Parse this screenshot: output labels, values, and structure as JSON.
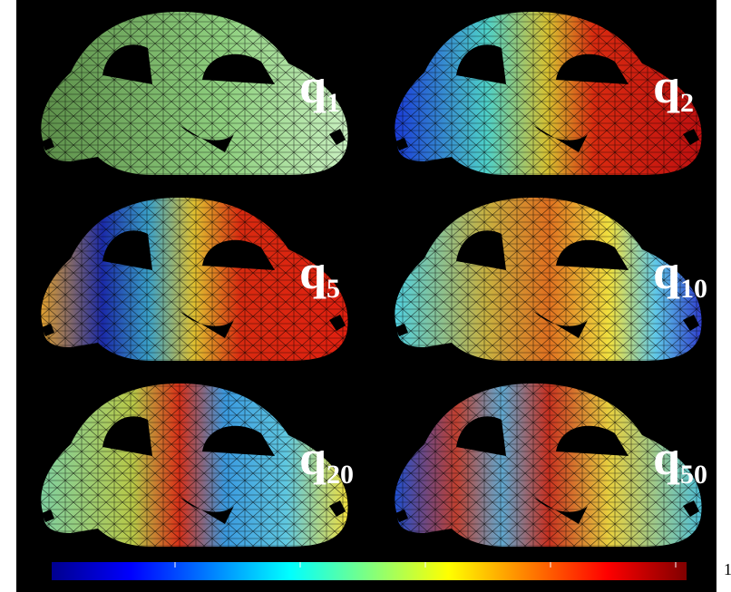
{
  "panels": [
    {
      "label": "q",
      "subscript": "1"
    },
    {
      "label": "q",
      "subscript": "2"
    },
    {
      "label": "q",
      "subscript": "5"
    },
    {
      "label": "q",
      "subscript": "10"
    },
    {
      "label": "q",
      "subscript": "20"
    },
    {
      "label": "q",
      "subscript": "50"
    }
  ],
  "colorbar": {
    "end_label": "1"
  }
}
